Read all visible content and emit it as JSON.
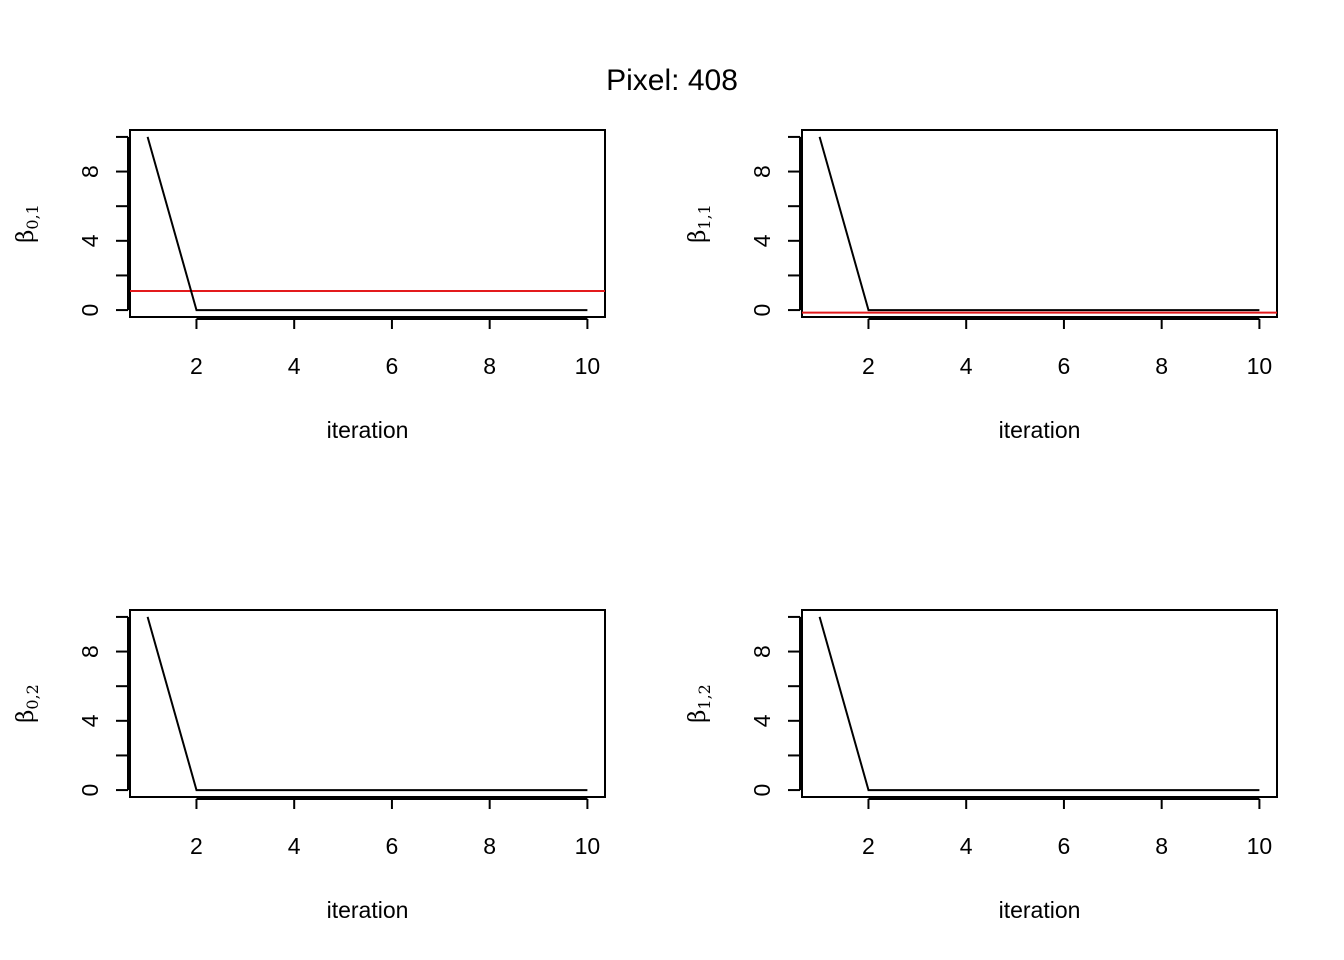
{
  "figure": {
    "title": "Pixel:  408"
  },
  "chart_data": [
    {
      "type": "line",
      "title": "",
      "xlabel": "iteration",
      "ylabel": {
        "symbol": "β",
        "subscript": "0,1"
      },
      "x": [
        1,
        2,
        3,
        4,
        5,
        6,
        7,
        8,
        9,
        10
      ],
      "series": [
        {
          "values": [
            10,
            0,
            0,
            0,
            0,
            0,
            0,
            0,
            0,
            0
          ],
          "color": "#000000"
        }
      ],
      "hline": {
        "value": 1.1,
        "color": "#e31a1c"
      },
      "xlim": [
        0.64,
        10.36
      ],
      "ylim": [
        -0.4,
        10.4
      ],
      "xticks": [
        2,
        4,
        6,
        8,
        10
      ],
      "yticks": [
        0,
        2,
        4,
        6,
        8,
        10
      ],
      "ytick_labels": [
        {
          "value": 0,
          "label": "0"
        },
        {
          "value": 4,
          "label": "4"
        },
        {
          "value": 8,
          "label": "8"
        }
      ],
      "grid": false,
      "legend": "none"
    },
    {
      "type": "line",
      "title": "",
      "xlabel": "iteration",
      "ylabel": {
        "symbol": "β",
        "subscript": "1,1"
      },
      "x": [
        1,
        2,
        3,
        4,
        5,
        6,
        7,
        8,
        9,
        10
      ],
      "series": [
        {
          "values": [
            10,
            0,
            0,
            0,
            0,
            0,
            0,
            0,
            0,
            0
          ],
          "color": "#000000"
        }
      ],
      "hline": {
        "value": -0.15,
        "color": "#e31a1c"
      },
      "xlim": [
        0.64,
        10.36
      ],
      "ylim": [
        -0.4,
        10.4
      ],
      "xticks": [
        2,
        4,
        6,
        8,
        10
      ],
      "yticks": [
        0,
        2,
        4,
        6,
        8,
        10
      ],
      "ytick_labels": [
        {
          "value": 0,
          "label": "0"
        },
        {
          "value": 4,
          "label": "4"
        },
        {
          "value": 8,
          "label": "8"
        }
      ],
      "grid": false,
      "legend": "none"
    },
    {
      "type": "line",
      "title": "",
      "xlabel": "iteration",
      "ylabel": {
        "symbol": "β",
        "subscript": "0,2"
      },
      "x": [
        1,
        2,
        3,
        4,
        5,
        6,
        7,
        8,
        9,
        10
      ],
      "series": [
        {
          "values": [
            10,
            0,
            0,
            0,
            0,
            0,
            0,
            0,
            0,
            0
          ],
          "color": "#000000"
        }
      ],
      "xlim": [
        0.64,
        10.36
      ],
      "ylim": [
        -0.4,
        10.4
      ],
      "xticks": [
        2,
        4,
        6,
        8,
        10
      ],
      "yticks": [
        0,
        2,
        4,
        6,
        8,
        10
      ],
      "ytick_labels": [
        {
          "value": 0,
          "label": "0"
        },
        {
          "value": 4,
          "label": "4"
        },
        {
          "value": 8,
          "label": "8"
        }
      ],
      "grid": false,
      "legend": "none"
    },
    {
      "type": "line",
      "title": "",
      "xlabel": "iteration",
      "ylabel": {
        "symbol": "β",
        "subscript": "1,2"
      },
      "x": [
        1,
        2,
        3,
        4,
        5,
        6,
        7,
        8,
        9,
        10
      ],
      "series": [
        {
          "values": [
            10,
            0,
            0,
            0,
            0,
            0,
            0,
            0,
            0,
            0
          ],
          "color": "#000000"
        }
      ],
      "xlim": [
        0.64,
        10.36
      ],
      "ylim": [
        -0.4,
        10.4
      ],
      "xticks": [
        2,
        4,
        6,
        8,
        10
      ],
      "yticks": [
        0,
        2,
        4,
        6,
        8,
        10
      ],
      "ytick_labels": [
        {
          "value": 0,
          "label": "0"
        },
        {
          "value": 4,
          "label": "4"
        },
        {
          "value": 8,
          "label": "8"
        }
      ],
      "grid": false,
      "legend": "none"
    }
  ]
}
